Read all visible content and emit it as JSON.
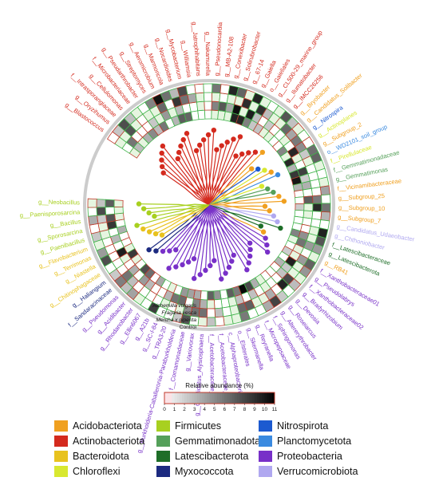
{
  "tracks": {
    "samples": [
      "Alchemilla vulgaris",
      "Fragaria vesca",
      "Mentha x piperita",
      "Control"
    ]
  },
  "scale": {
    "title": "Relative abundance (%)",
    "ticks": [
      "0",
      "1",
      "2",
      "3",
      "4",
      "5",
      "6",
      "7",
      "8",
      "9",
      "10",
      "11"
    ],
    "min": 0,
    "max": 11
  },
  "phyla": [
    {
      "key": "acido",
      "name": "Acidobacteriota",
      "color": "#f0a020"
    },
    {
      "key": "actino",
      "name": "Actinobacteriota",
      "color": "#d42a1e"
    },
    {
      "key": "bactero",
      "name": "Bacteroidota",
      "color": "#e8c21e"
    },
    {
      "key": "chloro",
      "name": "Chloroflexi",
      "color": "#d8e830"
    },
    {
      "key": "firmi",
      "name": "Firmicutes",
      "color": "#a8d020"
    },
    {
      "key": "gemma",
      "name": "Gemmatimonadota",
      "color": "#55a05a"
    },
    {
      "key": "latesci",
      "name": "Latescibacterota",
      "color": "#1e6e28"
    },
    {
      "key": "myxo",
      "name": "Myxococcota",
      "color": "#1c2a80"
    },
    {
      "key": "nitro",
      "name": "Nitrospirota",
      "color": "#1c5ad0"
    },
    {
      "key": "plancto",
      "name": "Planctomycetota",
      "color": "#3a8ae0"
    },
    {
      "key": "proteo",
      "name": "Proteobacteria",
      "color": "#7830c8"
    },
    {
      "key": "verruco",
      "name": "Verrucomicrobiota",
      "color": "#b0a8f0"
    }
  ],
  "taxa": [
    {
      "label": "g__Blastococcus",
      "phylum": "actino"
    },
    {
      "label": "g__Oryzihumus",
      "phylum": "actino"
    },
    {
      "label": "f__Intrasporangiaceae",
      "phylum": "actino"
    },
    {
      "label": "g__Cellulomonas",
      "phylum": "actino"
    },
    {
      "label": "f__Microbacteriaceae",
      "phylum": "actino"
    },
    {
      "label": "g__Pseudarthrobacter",
      "phylum": "actino"
    },
    {
      "label": "g__Streptomyces",
      "phylum": "actino"
    },
    {
      "label": "g__Aeromicrobium",
      "phylum": "actino"
    },
    {
      "label": "g__Marmoricola",
      "phylum": "actino"
    },
    {
      "label": "g__Nocardioides",
      "phylum": "actino"
    },
    {
      "label": "g__Mycobacterium",
      "phylum": "actino"
    },
    {
      "label": "g__Williamsia",
      "phylum": "actino"
    },
    {
      "label": "g__Jatrophihabitans",
      "phylum": "actino"
    },
    {
      "label": "g__Nakamurella",
      "phylum": "actino"
    },
    {
      "label": "g__Pseudonocardia",
      "phylum": "actino"
    },
    {
      "label": "g__MB-A2-108",
      "phylum": "actino"
    },
    {
      "label": "g__Conexibacter",
      "phylum": "actino"
    },
    {
      "label": "g__Solirubrobacter",
      "phylum": "actino"
    },
    {
      "label": "g__67-14",
      "phylum": "actino"
    },
    {
      "label": "g__Gaiella",
      "phylum": "actino"
    },
    {
      "label": "o__Gaiellales",
      "phylum": "actino"
    },
    {
      "label": "g__CL500-29_marine_group",
      "phylum": "actino"
    },
    {
      "label": "g__Ilumatobacter",
      "phylum": "actino"
    },
    {
      "label": "g__IMCC26256",
      "phylum": "actino"
    },
    {
      "label": "g__Bryobacter",
      "phylum": "acido"
    },
    {
      "label": "g__Candidatus_Solibacter",
      "phylum": "acido"
    },
    {
      "label": "g__Nitrospira",
      "phylum": "nitro"
    },
    {
      "label": "g__Actinoplanes",
      "phylum": "chloro"
    },
    {
      "label": "g__Subgroup_2",
      "phylum": "acido"
    },
    {
      "label": "o__WD2101_soil_group",
      "phylum": "plancto"
    },
    {
      "label": "f__Pirellulaceae",
      "phylum": "chloro"
    },
    {
      "label": "f__Gemmatimonadaceae",
      "phylum": "gemma"
    },
    {
      "label": "g__Gemmatimonas",
      "phylum": "gemma"
    },
    {
      "label": "f__Vicinamibacteraceae",
      "phylum": "acido"
    },
    {
      "label": "g__Subgroup_25",
      "phylum": "acido"
    },
    {
      "label": "g__Subgroup_10",
      "phylum": "acido"
    },
    {
      "label": "g__Subgroup_7",
      "phylum": "acido"
    },
    {
      "label": "g__Candidatus_Udaeobacter",
      "phylum": "verruco"
    },
    {
      "label": "g__Chthoniobacter",
      "phylum": "verruco"
    },
    {
      "label": "f__Latescibacteraceae",
      "phylum": "latesci"
    },
    {
      "label": "g__Latescibacterota",
      "phylum": "latesci"
    },
    {
      "label": "g__RB41",
      "phylum": "acido"
    },
    {
      "label": "f__Xanthobacteraceae01",
      "phylum": "proteo"
    },
    {
      "label": "g__Pseudolabrys",
      "phylum": "proteo"
    },
    {
      "label": "f__Xanthobacteraceae02",
      "phylum": "proteo"
    },
    {
      "label": "g__Bradyrhizobium",
      "phylum": "proteo"
    },
    {
      "label": "g__Devosia",
      "phylum": "proteo"
    },
    {
      "label": "g__Roseiarcus",
      "phylum": "proteo"
    },
    {
      "label": "g__Altererythrobacter",
      "phylum": "proteo"
    },
    {
      "label": "f__Sphingomonas",
      "phylum": "proteo"
    },
    {
      "label": "f__Micropepsaceae",
      "phylum": "proteo"
    },
    {
      "label": "g__Reyranella",
      "phylum": "proteo"
    },
    {
      "label": "g__Skermanella",
      "phylum": "proteo"
    },
    {
      "label": "o__Elsterales",
      "phylum": "proteo"
    },
    {
      "label": "c__Alphaproteobacteria",
      "phylum": "proteo"
    },
    {
      "label": "f__Acetobacteraceae_02",
      "phylum": "proteo"
    },
    {
      "label": "f__Acetobacteraceae_01",
      "phylum": "proteo"
    },
    {
      "label": "g__Candidatus_Alysiosphaera",
      "phylum": "proteo"
    },
    {
      "label": "g__Variovorax",
      "phylum": "proteo"
    },
    {
      "label": "f__Comamonadaceae",
      "phylum": "proteo"
    },
    {
      "label": "g__Burkholderia-Caballeronia-Paraburkholderia",
      "phylum": "proteo"
    },
    {
      "label": "g__TRA3-20",
      "phylum": "proteo"
    },
    {
      "label": "g__SC-I-84",
      "phylum": "proteo"
    },
    {
      "label": "g__A21b",
      "phylum": "proteo"
    },
    {
      "label": "g__Ellin6067",
      "phylum": "proteo"
    },
    {
      "label": "g__Rhodanobacter",
      "phylum": "proteo"
    },
    {
      "label": "g__Acidibacter",
      "phylum": "proteo"
    },
    {
      "label": "g__Pseudomonas",
      "phylum": "proteo"
    },
    {
      "label": "f__Sandaracinaceae",
      "phylum": "myxo"
    },
    {
      "label": "g__Haliangium",
      "phylum": "myxo"
    },
    {
      "label": "g__Chitinophagaceae",
      "phylum": "bactero"
    },
    {
      "label": "g__Niastella",
      "phylum": "bactero"
    },
    {
      "label": "g__Terrimonas",
      "phylum": "bactero"
    },
    {
      "label": "g__Flavobacterium",
      "phylum": "bactero"
    },
    {
      "label": "g__Paenibacillus",
      "phylum": "firmi"
    },
    {
      "label": "g__Sporosarcina",
      "phylum": "firmi"
    },
    {
      "label": "g__Bacillus",
      "phylum": "firmi"
    },
    {
      "label": "g__Paenisporosarcina",
      "phylum": "firmi"
    },
    {
      "label": "g__Neobacillus",
      "phylum": "firmi"
    }
  ]
}
